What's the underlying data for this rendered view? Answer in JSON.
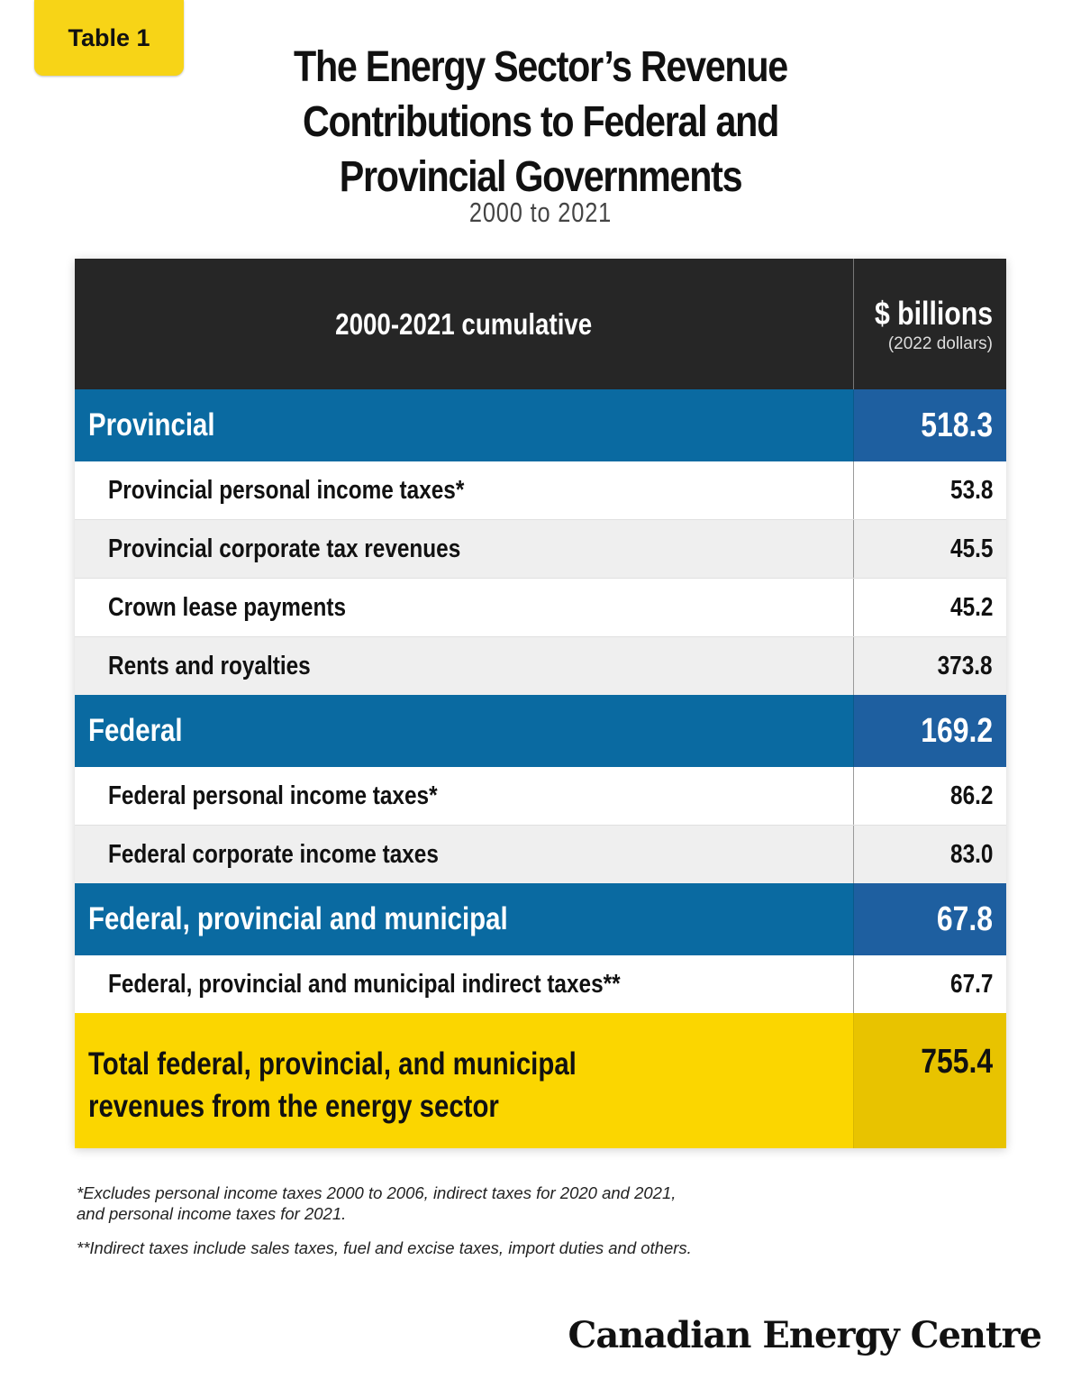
{
  "tag": "Table 1",
  "title": "The Energy Sector’s Revenue Contributions to Federal and Provincial Governments",
  "subtitle": "2000 to 2021",
  "table": {
    "header_left": "2000-2021 cumulative",
    "header_right": "$ billions",
    "header_right_sub": "(2022 dollars)",
    "sections": [
      {
        "label": "Provincial",
        "value": "518.3",
        "items": [
          {
            "label": "Provincial personal income taxes*",
            "value": "53.8"
          },
          {
            "label": "Provincial corporate tax revenues",
            "value": "45.5"
          },
          {
            "label": "Crown lease payments",
            "value": "45.2"
          },
          {
            "label": "Rents and royalties",
            "value": "373.8"
          }
        ]
      },
      {
        "label": "Federal",
        "value": "169.2",
        "items": [
          {
            "label": "Federal personal income taxes*",
            "value": "86.2"
          },
          {
            "label": "Federal corporate income taxes",
            "value": "83.0"
          }
        ]
      },
      {
        "label": "Federal, provincial and municipal",
        "value": "67.8",
        "items": [
          {
            "label": "Federal, provincial and municipal indirect taxes**",
            "value": "67.7"
          }
        ]
      }
    ],
    "total_line1": "Total federal, provincial, and municipal",
    "total_line2": "revenues from the energy sector",
    "total_value": "755.4"
  },
  "footnotes": {
    "note1_line1": "*Excludes personal income taxes 2000 to 2006, indirect taxes for 2020 and 2021,",
    "note1_line2": "and personal income taxes for 2021.",
    "note2": "**Indirect taxes include sales taxes, fuel and excise taxes, import duties and others."
  },
  "logo": "Canadian Energy Centre"
}
